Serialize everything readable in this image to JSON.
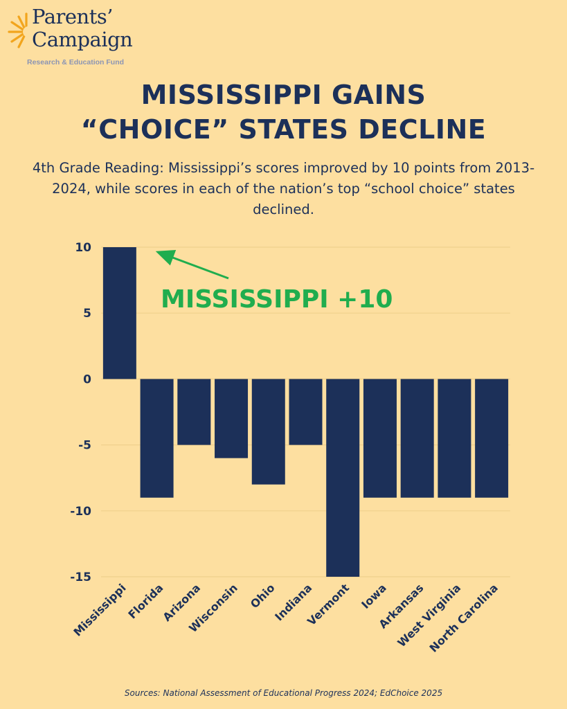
{
  "logo": {
    "line1": "Parents’",
    "line2": "Campaign",
    "tagline": "Research & Education Fund"
  },
  "title": {
    "line1": "MISSISSIPPI GAINS",
    "line2": "“CHOICE” STATES DECLINE"
  },
  "subtitle": "4th Grade Reading: Mississippi’s scores improved by 10 points from 2013-2024, while scores in each of the nation’s top “school choice” states declined.",
  "annotation": "MISSISSIPPI +10",
  "source": "Sources: National Assessment of Educational Progress 2024; EdChoice 2025",
  "colors": {
    "background": "#fddfa0",
    "bar": "#1c3059",
    "accent": "#20ad4e",
    "grid": "#f0d08c"
  },
  "chart_data": {
    "type": "bar",
    "categories": [
      "Mississippi",
      "Florida",
      "Arizona",
      "Wisconsin",
      "Ohio",
      "Indiana",
      "Vermont",
      "Iowa",
      "Arkansas",
      "West Virginia",
      "North Carolina"
    ],
    "values": [
      10,
      -9,
      -5,
      -6,
      -8,
      -5,
      -15,
      -9,
      -9,
      -9,
      -9
    ],
    "yticks": [
      10,
      5,
      0,
      -5,
      -10,
      -15
    ],
    "ylim": [
      -15,
      10
    ],
    "grid": true,
    "title": "",
    "xlabel": "",
    "ylabel": ""
  }
}
